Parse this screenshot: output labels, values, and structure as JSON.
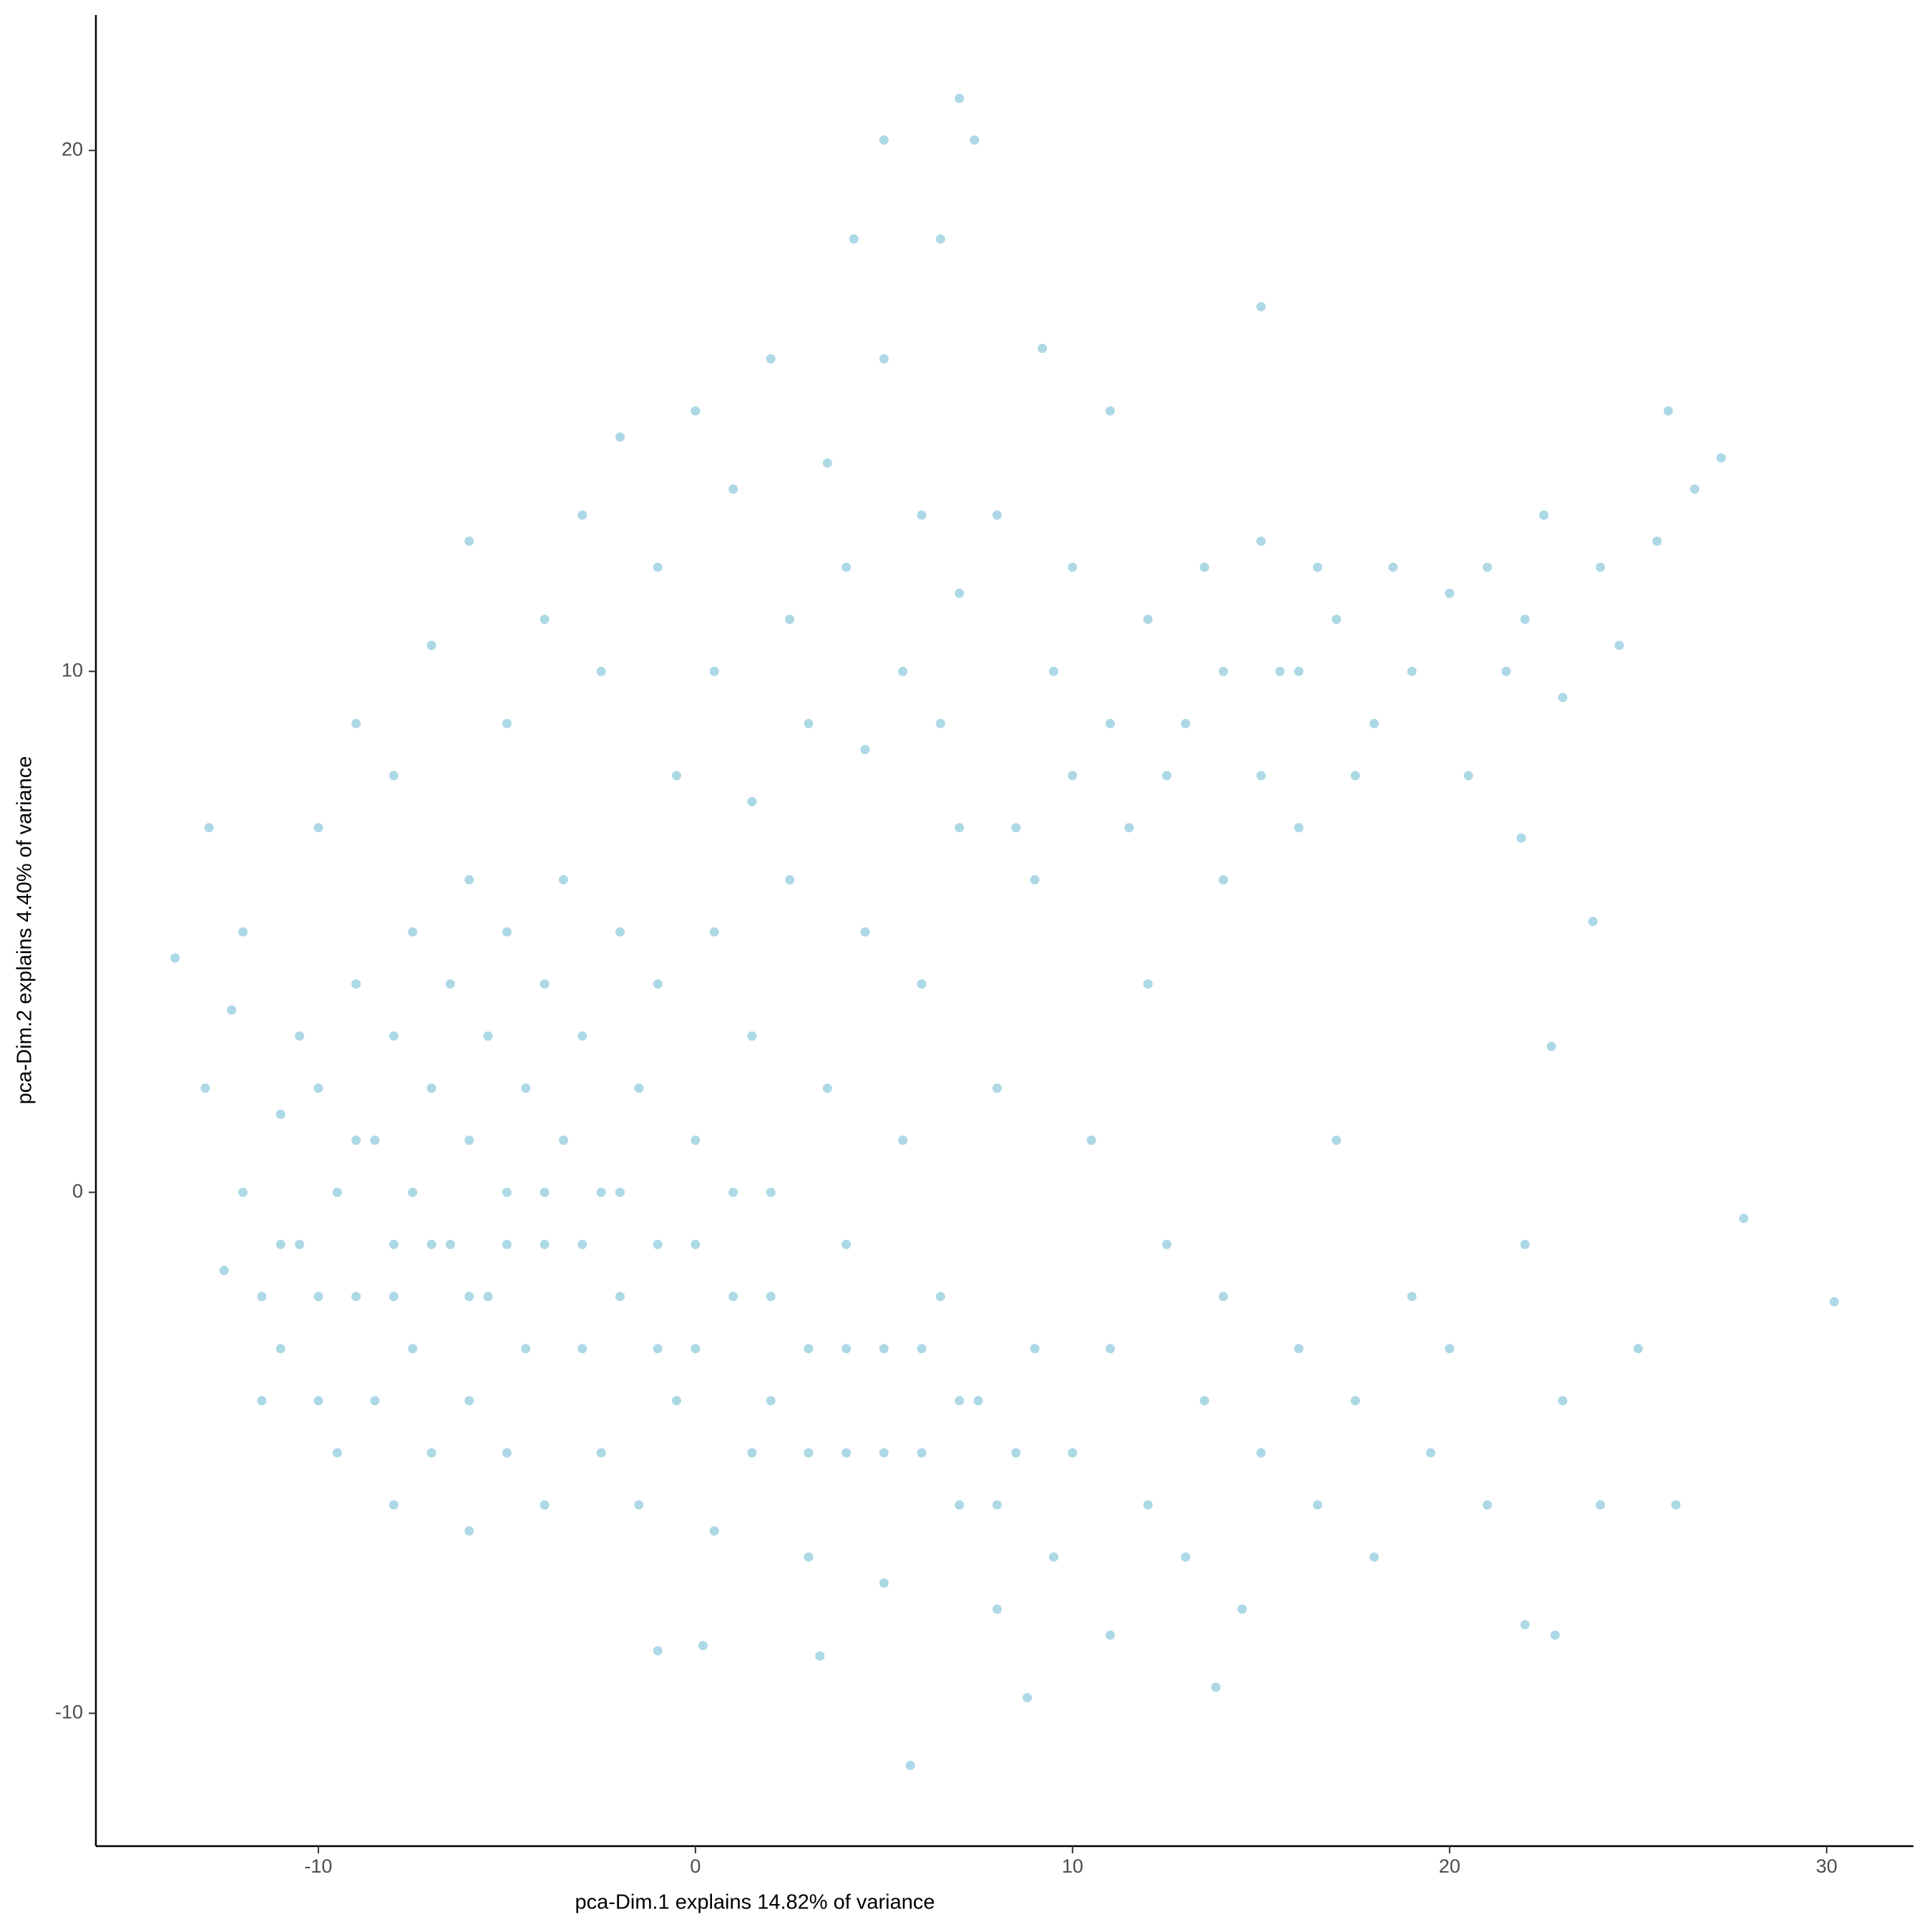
{
  "chart_data": {
    "type": "scatter",
    "x_label": "pca-Dim.1 explains 14.82% of variance",
    "y_label": "pca-Dim.2 explains 4.40% of variance",
    "color": "#add8e6",
    "xlim": [
      -15.9,
      32.3
    ],
    "ylim": [
      -12.55,
      22.6
    ],
    "xticks": [
      -10,
      0,
      10,
      20,
      30
    ],
    "yticks": [
      -10,
      0,
      10,
      20
    ],
    "x": [
      -12,
      -11.5,
      -11,
      -11,
      -10.5,
      -10.5,
      -10,
      -10,
      -9.5,
      -9.5,
      -9,
      -9,
      -8.5,
      -8.5,
      -8,
      -8,
      -8,
      -7.5,
      -7.5,
      -7.5,
      -7,
      -7,
      -6.5,
      -6.5,
      -6,
      -6,
      -6,
      -6,
      -5.5,
      -5.5,
      -5,
      -5,
      -5,
      -4.5,
      -4.5,
      -4,
      -4,
      -4,
      -3.5,
      -3.5,
      -3,
      -3,
      -2.5,
      -2.5,
      -2,
      -2,
      -1.5,
      -1.5,
      -1,
      -1,
      -0.5,
      0,
      0,
      0.5,
      0.5,
      1,
      1.5,
      1.5,
      2,
      2,
      2.5,
      3,
      3,
      3.5,
      4,
      4,
      4.5,
      5,
      5,
      5.5,
      6,
      6,
      6.5,
      7,
      7,
      7.5,
      8,
      8,
      8.5,
      9,
      9,
      9.5,
      10,
      10,
      10.5,
      11,
      11,
      11.5,
      12,
      12,
      12.5,
      13,
      13,
      13.5,
      14,
      14,
      14.5,
      15,
      15,
      15.5,
      16,
      16,
      16.5,
      17,
      17,
      17.5,
      18,
      18,
      18.5,
      19,
      19,
      19.5,
      20,
      20,
      20.5,
      21,
      21,
      21.5,
      22,
      22,
      22.5,
      23,
      23,
      24,
      24,
      24.5,
      25,
      25.5,
      26,
      26.5,
      -10,
      -9,
      -8,
      -7,
      -6,
      -5,
      -4,
      -3,
      -2.5,
      -2,
      -1,
      -0.5,
      0,
      0.5,
      1,
      1.5,
      2,
      2.5,
      3,
      3.5,
      4,
      4.5,
      5,
      5.5,
      6,
      6.5,
      7,
      8,
      8.5,
      9.5,
      10,
      11,
      12,
      12.5,
      13.5,
      14,
      15,
      16,
      16.5,
      17.5,
      -11,
      -10,
      -9,
      -8,
      -7,
      -6,
      -5,
      -4,
      -3,
      -2,
      -1,
      0,
      1,
      2,
      3,
      4,
      5,
      6,
      7,
      8,
      7,
      5,
      7.4,
      4.2,
      6.5,
      15,
      9.2,
      11,
      30.2,
      27.8,
      5.7,
      8.8,
      13.8,
      -13.8,
      -12.9,
      25.8,
      27.2,
      22.8,
      22,
      -1,
      0.2,
      3.3,
      23.8,
      22.7,
      21.9,
      -12.5,
      -13,
      -12,
      -11.5,
      -12.3
    ],
    "values": [
      0,
      -2,
      1.5,
      -3,
      3,
      -1,
      -4,
      2,
      0,
      -5,
      4,
      -2,
      1,
      -4,
      3,
      -1,
      -6,
      5,
      0,
      -3,
      2,
      -5,
      4,
      -1,
      6,
      1,
      -4,
      -6.5,
      3,
      -2,
      5,
      0,
      -5,
      2,
      -3,
      4,
      -1,
      -6,
      6,
      1,
      -3,
      3,
      -5,
      0,
      5,
      -2,
      2,
      -6,
      4,
      -1,
      -4,
      1,
      -3,
      5,
      -6.5,
      -2,
      3,
      -5,
      0,
      -4,
      6,
      -3,
      -7,
      2,
      -5,
      -1,
      5,
      -3,
      -7.5,
      1,
      -5,
      4,
      -2,
      -6,
      7,
      -4,
      2,
      -8,
      -5,
      6,
      -3,
      -7,
      8,
      -5,
      1,
      -8.5,
      -3,
      7,
      -6,
      4,
      -1,
      9,
      -7,
      -4,
      6,
      -2,
      -8,
      8,
      -5,
      10,
      -3,
      7,
      -6,
      11,
      1,
      -4,
      9,
      -7,
      12,
      -2,
      10,
      -5,
      11.5,
      -3,
      8,
      12,
      -6,
      10,
      -1,
      11,
      13,
      -4,
      9.5,
      12,
      -6,
      10.5,
      -3,
      12.5,
      -6,
      13.5,
      7,
      9,
      8,
      10.5,
      12.5,
      9,
      11,
      13,
      10,
      14.5,
      12,
      8,
      15,
      10,
      13.5,
      7.5,
      16,
      11,
      9,
      14,
      12,
      8.5,
      16,
      10,
      13,
      9,
      11.5,
      13,
      7,
      10,
      12,
      9,
      11,
      8,
      12,
      10,
      12.5,
      10,
      12,
      8,
      -1,
      -2,
      1,
      -2,
      -1,
      -2,
      -1,
      0,
      -1,
      0,
      -3,
      -1,
      0,
      -2,
      -5,
      -3,
      -5,
      -3,
      -4,
      -6,
      21,
      20.2,
      20.2,
      18.3,
      18.3,
      17,
      16.2,
      15,
      -2.1,
      -0.5,
      -11,
      -9.7,
      -9.5,
      4.5,
      7,
      15,
      14.1,
      -8.5,
      -8.3,
      -8.8,
      -8.7,
      -8.9,
      5.2,
      2.8,
      6.8,
      -1.5,
      2,
      5,
      -4,
      3.5
    ]
  }
}
